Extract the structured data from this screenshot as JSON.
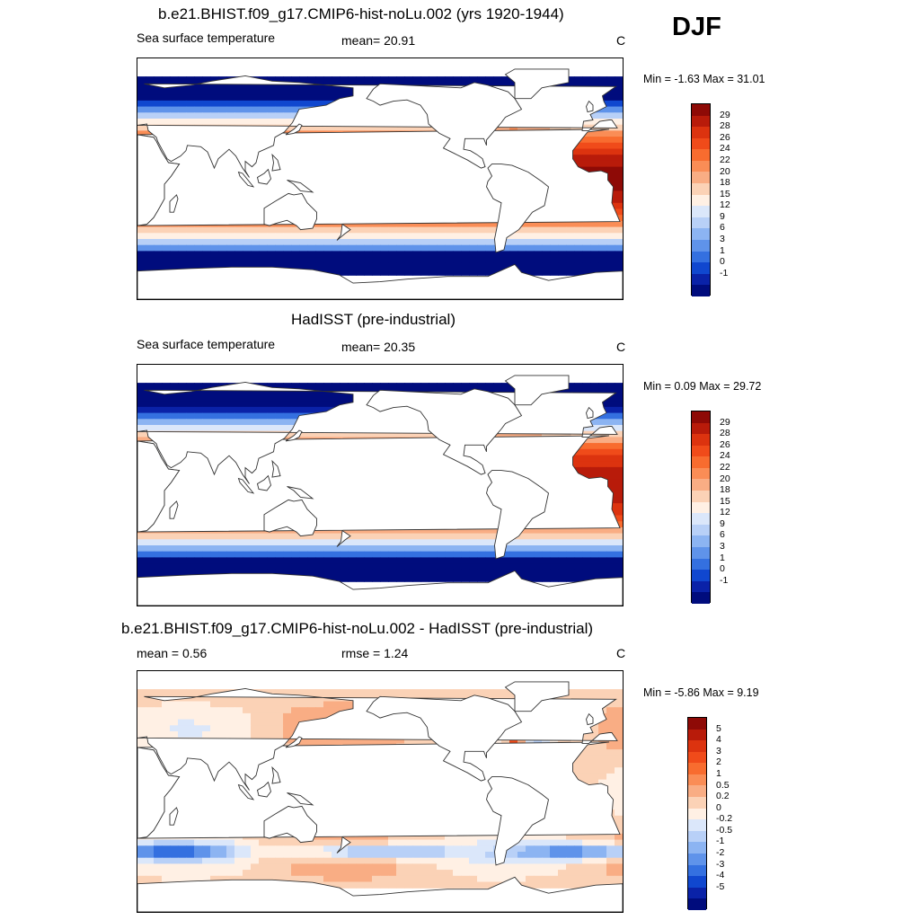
{
  "season": "DJF",
  "chart_data": [
    {
      "type": "heatmap",
      "title": "b.e21.BHIST.f09_g17.CMIP6-hist-noLu.002 (yrs 1920-1944)",
      "left_label": "Sea surface temperature",
      "center_label": "mean=  20.91",
      "units": "C",
      "mean": 20.91,
      "min_max_label": "Min =  -1.63 Max =  31.01",
      "min": -1.63,
      "max": 31.01,
      "levels": [
        "29",
        "28",
        "26",
        "24",
        "22",
        "20",
        "18",
        "15",
        "12",
        "9",
        "6",
        "3",
        "1",
        "0",
        "-1"
      ],
      "colors": [
        "#8e0a06",
        "#b81b0a",
        "#dc330f",
        "#f04b1a",
        "#f86c2f",
        "#fa8d56",
        "#f9ad84",
        "#fbd2b6",
        "#fff0e4",
        "#dbe7fa",
        "#b8d0f7",
        "#8cb4f2",
        "#5f93ea",
        "#3470e0",
        "#1047cf",
        "#0a22a8",
        "#000c7d"
      ]
    },
    {
      "type": "heatmap",
      "title": "HadISST (pre-industrial)",
      "left_label": "Sea surface temperature",
      "center_label": "mean=  20.35",
      "units": "C",
      "mean": 20.35,
      "min_max_label": "Min =   0.09 Max =  29.72",
      "min": 0.09,
      "max": 29.72,
      "levels": [
        "29",
        "28",
        "26",
        "24",
        "22",
        "20",
        "18",
        "15",
        "12",
        "9",
        "6",
        "3",
        "1",
        "0",
        "-1"
      ],
      "colors": [
        "#8e0a06",
        "#b81b0a",
        "#dc330f",
        "#f04b1a",
        "#f86c2f",
        "#fa8d56",
        "#f9ad84",
        "#fbd2b6",
        "#fff0e4",
        "#dbe7fa",
        "#b8d0f7",
        "#8cb4f2",
        "#5f93ea",
        "#3470e0",
        "#1047cf",
        "#0a22a8",
        "#000c7d"
      ]
    },
    {
      "type": "heatmap",
      "title": "b.e21.BHIST.f09_g17.CMIP6-hist-noLu.002 - HadISST (pre-industrial)",
      "left_label": "mean =   0.56",
      "center_label": "rmse =   1.24",
      "units": "C",
      "mean": 0.56,
      "rmse": 1.24,
      "min_max_label": "Min =  -5.86 Max =   9.19",
      "min": -5.86,
      "max": 9.19,
      "levels": [
        "5",
        "4",
        "3",
        "2",
        "1",
        "0.5",
        "0.2",
        "0",
        "-0.2",
        "-0.5",
        "-1",
        "-2",
        "-3",
        "-4",
        "-5"
      ],
      "colors": [
        "#8e0a06",
        "#b81b0a",
        "#dc330f",
        "#f04b1a",
        "#f86c2f",
        "#fa8d56",
        "#f9ad84",
        "#fbd2b6",
        "#fff0e4",
        "#dbe7fa",
        "#b8d0f7",
        "#8cb4f2",
        "#5f93ea",
        "#3470e0",
        "#1047cf",
        "#0a22a8",
        "#000c7d"
      ]
    }
  ]
}
